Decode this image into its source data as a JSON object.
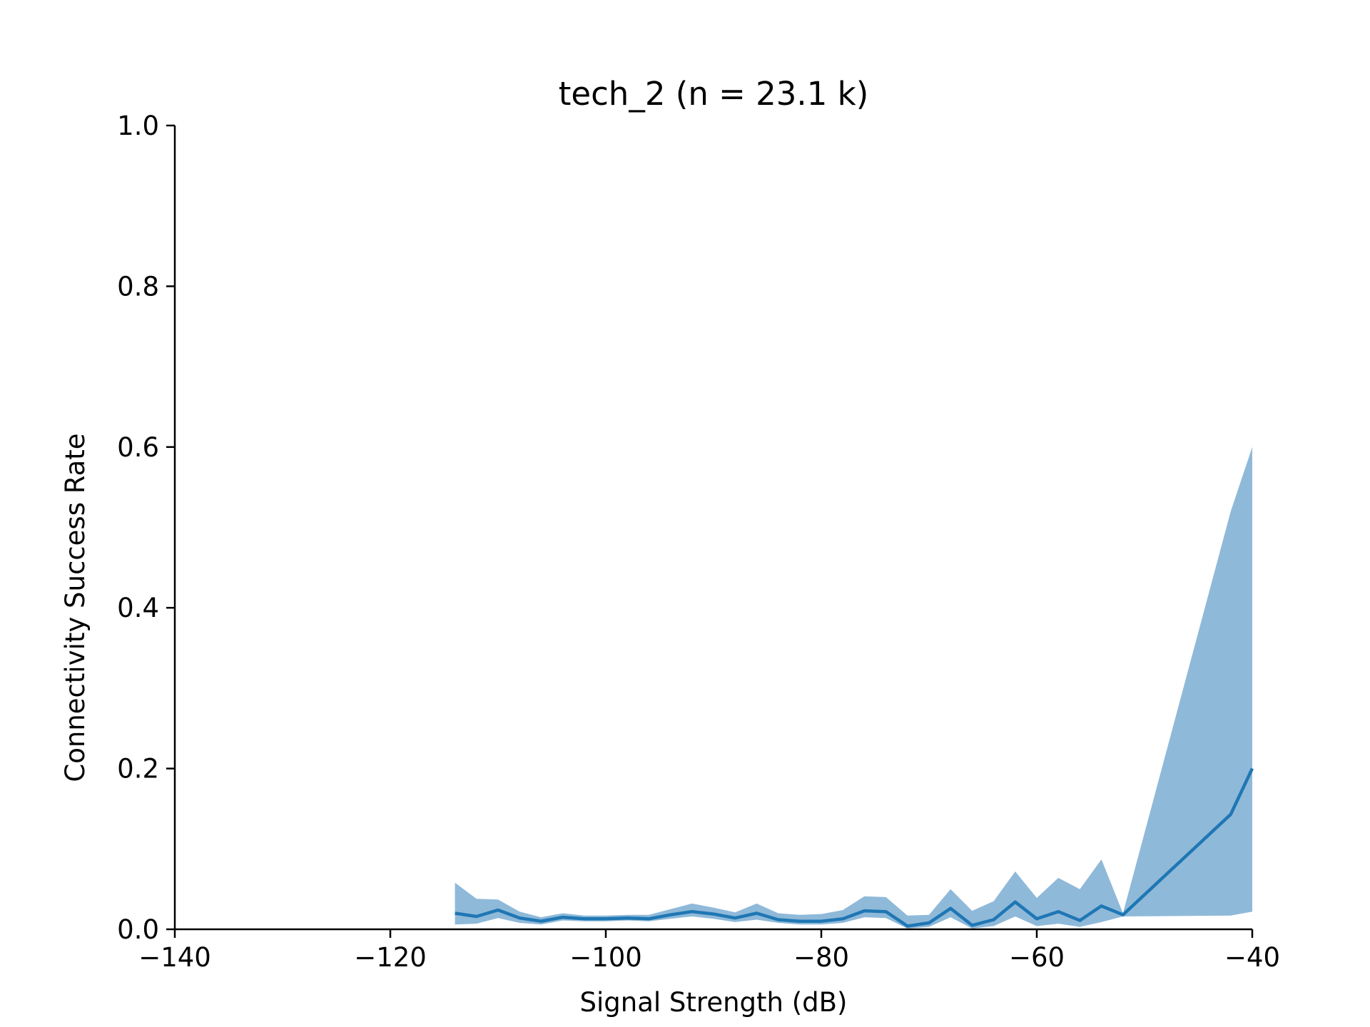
{
  "chart_data": {
    "type": "line",
    "title": "tech_2 (n = 23.1 k)",
    "xlabel": "Signal Strength (dB)",
    "ylabel": "Connectivity Success Rate",
    "xlim": [
      -140,
      -40
    ],
    "ylim": [
      0.0,
      1.0
    ],
    "xticks": [
      -140,
      -120,
      -100,
      -80,
      -60,
      -40
    ],
    "xtick_labels": [
      "−140",
      "−120",
      "−100",
      "−80",
      "−60",
      "−40"
    ],
    "yticks": [
      0.0,
      0.2,
      0.4,
      0.6,
      0.8,
      1.0
    ],
    "ytick_labels": [
      "0.0",
      "0.2",
      "0.4",
      "0.6",
      "0.8",
      "1.0"
    ],
    "grid": false,
    "legend": "none",
    "series": [
      {
        "x": [
          -114,
          -112,
          -110,
          -108,
          -106,
          -104,
          -102,
          -100,
          -98,
          -96,
          -94,
          -92,
          -90,
          -88,
          -86,
          -84,
          -82,
          -80,
          -78,
          -76,
          -74,
          -72,
          -70,
          -68,
          -66,
          -64,
          -62,
          -60,
          -58,
          -56,
          -54,
          -52,
          -42,
          -40
        ],
        "y": [
          0.02,
          0.016,
          0.024,
          0.014,
          0.01,
          0.015,
          0.013,
          0.013,
          0.014,
          0.013,
          0.018,
          0.022,
          0.019,
          0.014,
          0.02,
          0.012,
          0.01,
          0.01,
          0.013,
          0.023,
          0.022,
          0.004,
          0.008,
          0.026,
          0.005,
          0.012,
          0.034,
          0.013,
          0.022,
          0.011,
          0.029,
          0.018,
          0.143,
          0.2
        ],
        "lower": [
          0.006,
          0.007,
          0.014,
          0.008,
          0.006,
          0.011,
          0.01,
          0.01,
          0.011,
          0.01,
          0.013,
          0.016,
          0.013,
          0.009,
          0.012,
          0.008,
          0.006,
          0.006,
          0.008,
          0.015,
          0.014,
          0.001,
          0.003,
          0.015,
          0.001,
          0.004,
          0.016,
          0.004,
          0.007,
          0.003,
          0.009,
          0.016,
          0.017,
          0.022
        ],
        "upper": [
          0.058,
          0.038,
          0.037,
          0.022,
          0.015,
          0.02,
          0.017,
          0.017,
          0.018,
          0.018,
          0.025,
          0.032,
          0.027,
          0.021,
          0.032,
          0.02,
          0.018,
          0.019,
          0.024,
          0.041,
          0.04,
          0.017,
          0.018,
          0.05,
          0.023,
          0.035,
          0.072,
          0.039,
          0.064,
          0.05,
          0.087,
          0.02,
          0.52,
          0.6
        ]
      }
    ],
    "colors": {
      "line": "#1f77b4",
      "band": "#8fb9d9",
      "axis": "#000000"
    }
  }
}
